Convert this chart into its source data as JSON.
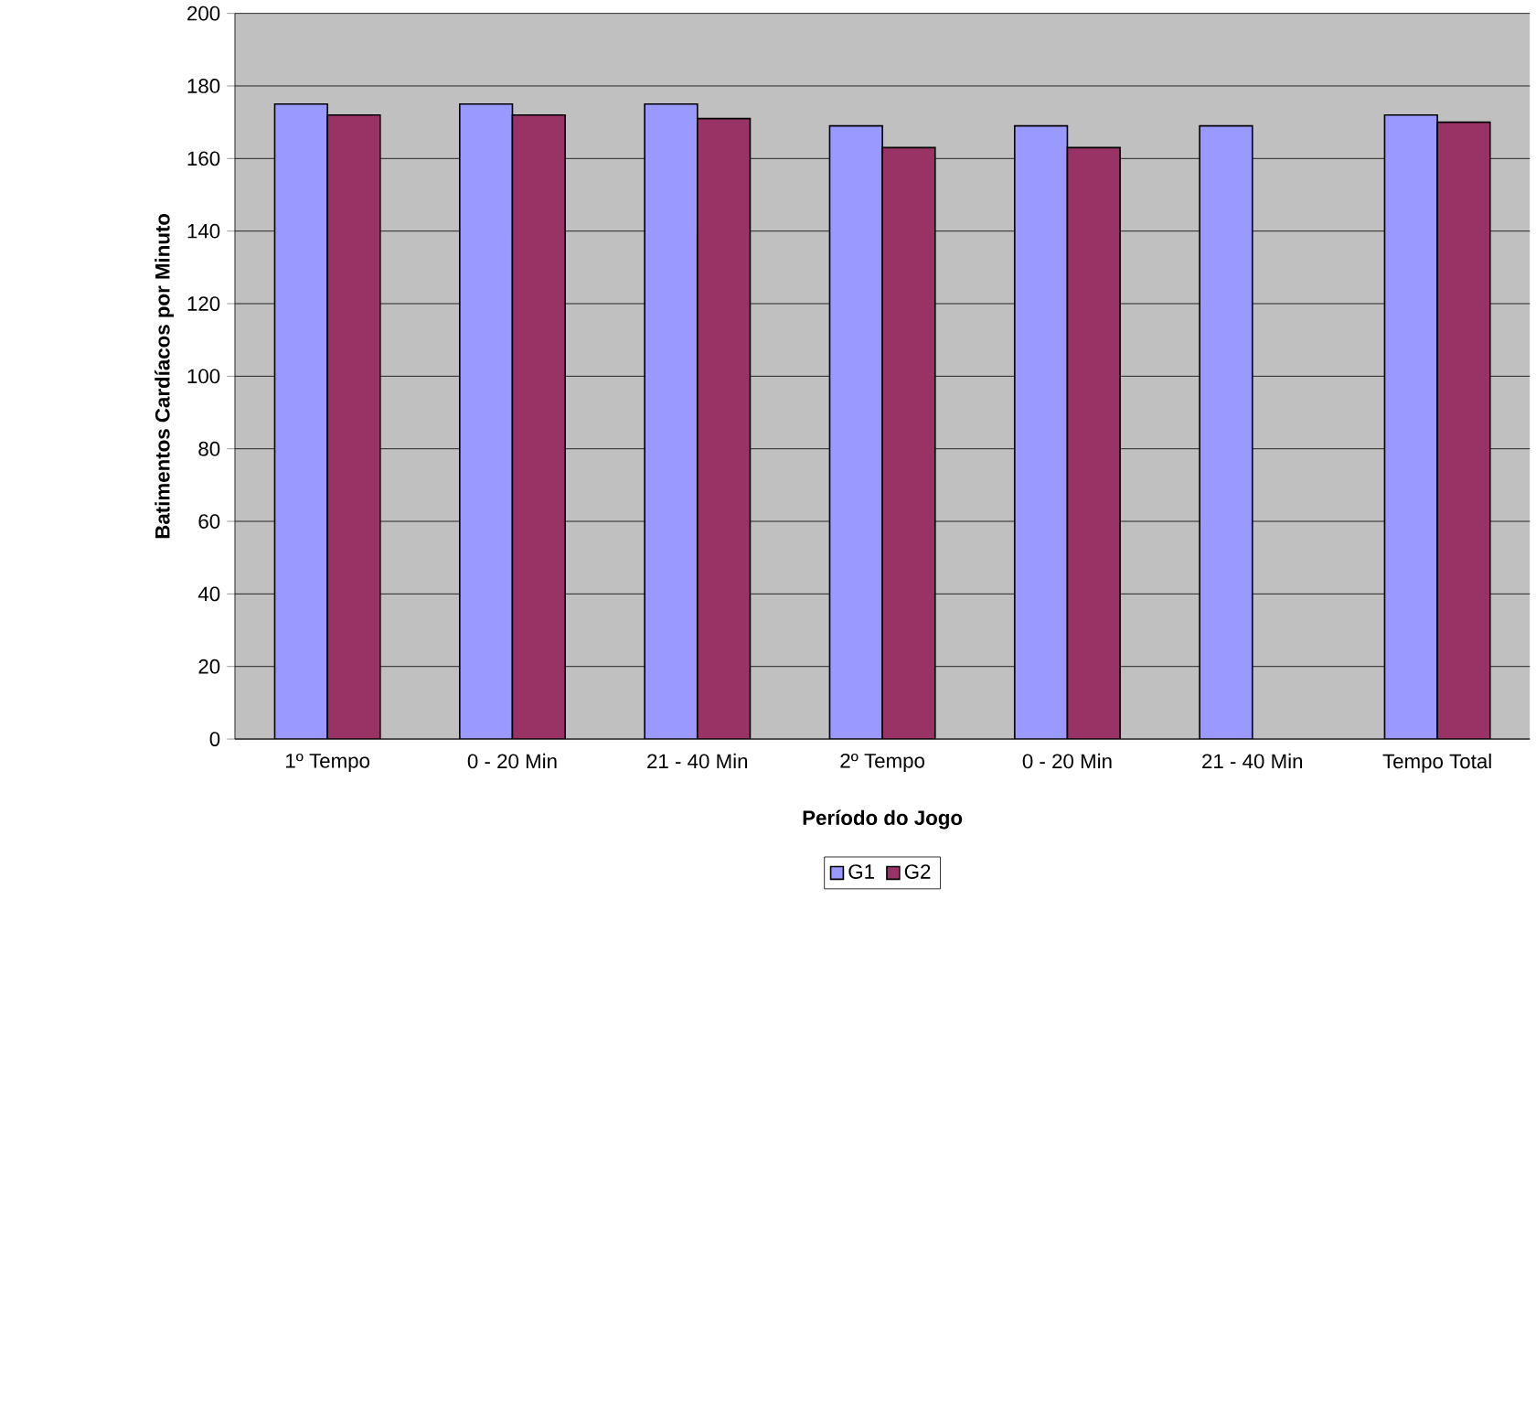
{
  "chart_data": {
    "type": "bar",
    "xlabel": "Período do Jogo",
    "ylabel": "Batimentos Cardíacos por Minuto",
    "categories": [
      "1º Tempo",
      "0 - 20 Min",
      "21 - 40 Min",
      "2º Tempo",
      "0 - 20 Min",
      "21 - 40 Min",
      "Tempo Total"
    ],
    "series": [
      {
        "name": "G1",
        "color": "#9999ff",
        "values": [
          175,
          175,
          175,
          169,
          169,
          169,
          172
        ]
      },
      {
        "name": "G2",
        "color": "#993366",
        "values": [
          172,
          172,
          171,
          163,
          163,
          null,
          170
        ]
      }
    ],
    "ylim": [
      0,
      200
    ],
    "yticks": [
      0,
      20,
      40,
      60,
      80,
      100,
      120,
      140,
      160,
      180,
      200
    ],
    "grid": "y",
    "legend": "bottom"
  }
}
